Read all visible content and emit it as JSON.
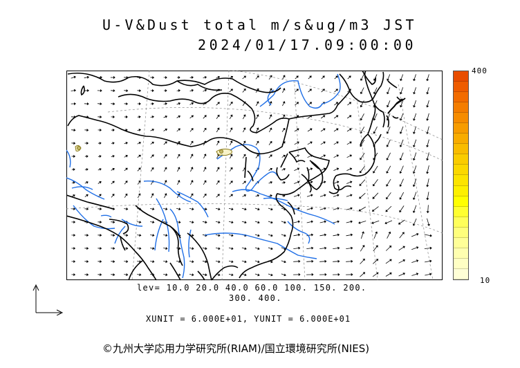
{
  "title": "U-V&Dust total m/s&ug/m3 JST",
  "datetime": "2024/01/17.09:00:00",
  "colorbar": {
    "max_label": "400",
    "min_label": "10",
    "colors": [
      "#e84d00",
      "#ee5c00",
      "#f26c00",
      "#f47d00",
      "#f68c00",
      "#f79c00",
      "#f8ac00",
      "#f9bc00",
      "#facc00",
      "#fbd800",
      "#fce400",
      "#fdf000",
      "#ffff00",
      "#ffff30",
      "#ffff5a",
      "#ffff7c",
      "#ffff98",
      "#ffffb0",
      "#ffffc4",
      "#ffffd6"
    ]
  },
  "levels_line1": "lev= 10.0 20.0 40.0 60.0 100. 150. 200.",
  "levels_line2": "300. 400.",
  "units": "XUNIT = 6.000E+01, YUNIT = 6.000E+01",
  "copyright": "©九州大学応用力学研究所(RIAM)/国立環境研究所(NIES)"
}
